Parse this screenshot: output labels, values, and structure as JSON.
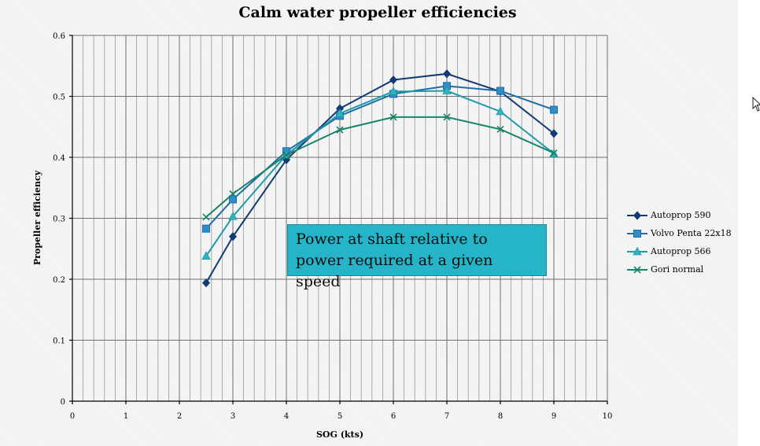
{
  "chart_data": {
    "type": "line",
    "title": "Calm water propeller efficiencies",
    "xlabel": "SOG (kts)",
    "ylabel": "Propeller  efficiency",
    "xlim": [
      0,
      10
    ],
    "ylim": [
      0,
      0.6
    ],
    "x_ticks": [
      "0",
      "1",
      "2",
      "3",
      "4",
      "5",
      "6",
      "7",
      "8",
      "9",
      "10"
    ],
    "y_ticks": [
      "0",
      "0.1",
      "0.2",
      "0.3",
      "0.4",
      "0.5",
      "0.6"
    ],
    "grid": true,
    "legend_position": "right",
    "series": [
      {
        "name": "Autoprop 590",
        "marker": "diamond",
        "color": "#123a73",
        "x": [
          2.5,
          3,
          4,
          5,
          6,
          7,
          8,
          9
        ],
        "y": [
          0.194,
          0.27,
          0.396,
          0.48,
          0.527,
          0.537,
          0.508,
          0.439
        ]
      },
      {
        "name": "Volvo Penta 22x18",
        "marker": "square",
        "color": "#1f6da3",
        "x": [
          2.5,
          3,
          4,
          5,
          6,
          7,
          8,
          9
        ],
        "y": [
          0.283,
          0.331,
          0.41,
          0.468,
          0.504,
          0.517,
          0.509,
          0.478
        ]
      },
      {
        "name": "Autoprop 566",
        "marker": "triangle",
        "color": "#1f9aa8",
        "x": [
          2.5,
          3,
          4,
          5,
          6,
          7,
          8,
          9
        ],
        "y": [
          0.238,
          0.303,
          0.404,
          0.472,
          0.508,
          0.509,
          0.475,
          0.406
        ]
      },
      {
        "name": "Gori normal",
        "marker": "x",
        "color": "#17856e",
        "x": [
          2.5,
          3,
          4,
          5,
          6,
          7,
          8,
          9
        ],
        "y": [
          0.302,
          0.34,
          0.404,
          0.445,
          0.466,
          0.466,
          0.446,
          0.407
        ]
      }
    ],
    "annotation": "Power at shaft relative to power required at a given speed"
  }
}
